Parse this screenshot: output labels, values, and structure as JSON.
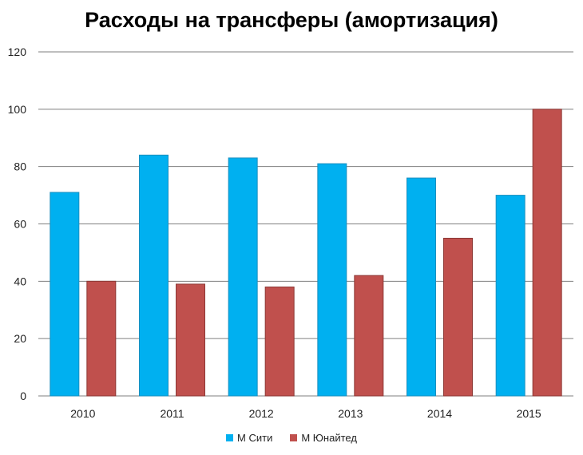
{
  "chart_data": {
    "type": "bar",
    "title": "Расходы на трансферы (амортизация)",
    "categories": [
      "2010",
      "2011",
      "2012",
      "2013",
      "2014",
      "2015"
    ],
    "series": [
      {
        "name": "М Сити",
        "color": "#00B0F0",
        "values": [
          71,
          84,
          83,
          81,
          76,
          70
        ]
      },
      {
        "name": "М Юнайтед",
        "color": "#C0504D",
        "values": [
          40,
          39,
          38,
          42,
          55,
          100
        ]
      }
    ],
    "ylim": [
      0,
      120
    ],
    "yticks": [
      "0",
      "20",
      "40",
      "60",
      "80",
      "100",
      "120"
    ],
    "grid": true,
    "legend_position": "bottom"
  }
}
